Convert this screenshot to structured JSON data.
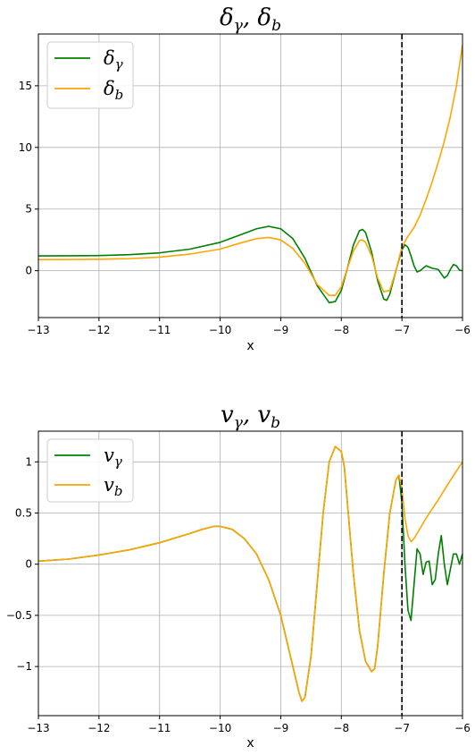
{
  "chart_data": [
    {
      "type": "line",
      "title": "δγ, δb",
      "xlabel": "x",
      "ylabel": "",
      "xlim": [
        -13,
        -6
      ],
      "ylim": [
        -3.8,
        19.2
      ],
      "xticks": [
        -13,
        -12,
        -11,
        -10,
        -9,
        -8,
        -7,
        -6
      ],
      "yticks": [
        0,
        5,
        10,
        15
      ],
      "grid": true,
      "legend": "top-left",
      "vline": {
        "x": -7,
        "style": "dashed",
        "color": "#000000"
      },
      "series": [
        {
          "name": "δγ",
          "color": "#008000",
          "x": [
            -13,
            -12.5,
            -12,
            -11.5,
            -11,
            -10.5,
            -10,
            -9.7,
            -9.4,
            -9.2,
            -9.0,
            -8.8,
            -8.6,
            -8.4,
            -8.2,
            -8.1,
            -8.0,
            -7.9,
            -7.8,
            -7.7,
            -7.65,
            -7.6,
            -7.5,
            -7.4,
            -7.3,
            -7.25,
            -7.2,
            -7.1,
            -7.0,
            -6.95,
            -6.9,
            -6.85,
            -6.8,
            -6.75,
            -6.7,
            -6.6,
            -6.5,
            -6.4,
            -6.3,
            -6.25,
            -6.2,
            -6.15,
            -6.1,
            -6.05,
            -6.0
          ],
          "y": [
            1.2,
            1.21,
            1.23,
            1.3,
            1.45,
            1.75,
            2.3,
            2.85,
            3.4,
            3.6,
            3.4,
            2.6,
            1.0,
            -1.2,
            -2.6,
            -2.5,
            -1.6,
            0.2,
            2.1,
            3.25,
            3.35,
            3.1,
            1.5,
            -0.8,
            -2.3,
            -2.4,
            -1.9,
            0.0,
            1.7,
            2.1,
            1.9,
            1.2,
            0.4,
            -0.1,
            0.0,
            0.4,
            0.2,
            0.1,
            -0.6,
            -0.4,
            0.1,
            0.5,
            0.4,
            0.05,
            0.0
          ]
        },
        {
          "name": "δb",
          "color": "#ffa500",
          "x": [
            -13,
            -12.5,
            -12,
            -11.5,
            -11,
            -10.5,
            -10,
            -9.7,
            -9.4,
            -9.2,
            -9.0,
            -8.8,
            -8.6,
            -8.4,
            -8.2,
            -8.1,
            -8.0,
            -7.9,
            -7.8,
            -7.7,
            -7.65,
            -7.6,
            -7.5,
            -7.4,
            -7.3,
            -7.2,
            -7.1,
            -7.0,
            -6.9,
            -6.8,
            -6.7,
            -6.6,
            -6.5,
            -6.4,
            -6.3,
            -6.2,
            -6.1,
            -6.0
          ],
          "y": [
            0.9,
            0.91,
            0.93,
            0.98,
            1.1,
            1.35,
            1.75,
            2.2,
            2.6,
            2.7,
            2.5,
            1.8,
            0.6,
            -1.1,
            -2.0,
            -2.0,
            -1.3,
            0.2,
            1.6,
            2.45,
            2.5,
            2.3,
            1.2,
            -0.6,
            -1.7,
            -1.6,
            0.0,
            1.9,
            2.8,
            3.5,
            4.5,
            5.8,
            7.2,
            8.8,
            10.5,
            12.5,
            15.0,
            18.3
          ]
        }
      ]
    },
    {
      "type": "line",
      "title": "vγ, vb",
      "xlabel": "x",
      "ylabel": "",
      "xlim": [
        -13,
        -6
      ],
      "ylim": [
        -1.48,
        1.3
      ],
      "xticks": [
        -13,
        -12,
        -11,
        -10,
        -9,
        -8,
        -7,
        -6
      ],
      "yticks": [
        -1.0,
        -0.5,
        0.0,
        0.5,
        1.0
      ],
      "grid": true,
      "legend": "top-left",
      "vline": {
        "x": -7,
        "style": "dashed",
        "color": "#000000"
      },
      "series": [
        {
          "name": "vγ",
          "color": "#008000",
          "x": [
            -13,
            -12.5,
            -12,
            -11.5,
            -11,
            -10.5,
            -10.3,
            -10.1,
            -10.0,
            -9.8,
            -9.6,
            -9.4,
            -9.2,
            -9.0,
            -8.8,
            -8.7,
            -8.65,
            -8.6,
            -8.5,
            -8.4,
            -8.3,
            -8.2,
            -8.1,
            -8.0,
            -7.95,
            -7.9,
            -7.8,
            -7.7,
            -7.6,
            -7.5,
            -7.45,
            -7.4,
            -7.3,
            -7.2,
            -7.1,
            -7.05,
            -7.0,
            -6.95,
            -6.9,
            -6.85,
            -6.8,
            -6.75,
            -6.7,
            -6.65,
            -6.6,
            -6.55,
            -6.5,
            -6.45,
            -6.4,
            -6.35,
            -6.3,
            -6.25,
            -6.2,
            -6.15,
            -6.1,
            -6.05,
            -6.0
          ],
          "y": [
            0.03,
            0.05,
            0.09,
            0.14,
            0.21,
            0.3,
            0.34,
            0.37,
            0.37,
            0.34,
            0.25,
            0.1,
            -0.15,
            -0.5,
            -1.0,
            -1.25,
            -1.34,
            -1.3,
            -0.9,
            -0.2,
            0.5,
            1.0,
            1.15,
            1.1,
            0.95,
            0.6,
            -0.1,
            -0.65,
            -0.95,
            -1.05,
            -1.02,
            -0.8,
            -0.1,
            0.5,
            0.82,
            0.87,
            0.6,
            0.0,
            -0.45,
            -0.55,
            -0.2,
            0.15,
            0.1,
            -0.1,
            0.02,
            0.03,
            -0.2,
            -0.15,
            0.1,
            0.28,
            0.0,
            -0.2,
            -0.05,
            0.1,
            0.1,
            0.0,
            0.1
          ]
        },
        {
          "name": "vb",
          "color": "#ffa500",
          "x": [
            -13,
            -12.5,
            -12,
            -11.5,
            -11,
            -10.5,
            -10.3,
            -10.1,
            -10.0,
            -9.8,
            -9.6,
            -9.4,
            -9.2,
            -9.0,
            -8.8,
            -8.7,
            -8.65,
            -8.6,
            -8.5,
            -8.4,
            -8.3,
            -8.2,
            -8.1,
            -8.0,
            -7.95,
            -7.9,
            -7.8,
            -7.7,
            -7.6,
            -7.5,
            -7.45,
            -7.4,
            -7.3,
            -7.2,
            -7.1,
            -7.05,
            -7.0,
            -6.95,
            -6.9,
            -6.85,
            -6.8,
            -6.6,
            -6.4,
            -6.2,
            -6.0
          ],
          "y": [
            0.03,
            0.05,
            0.09,
            0.14,
            0.21,
            0.3,
            0.34,
            0.37,
            0.37,
            0.34,
            0.25,
            0.1,
            -0.15,
            -0.5,
            -1.0,
            -1.25,
            -1.34,
            -1.3,
            -0.9,
            -0.2,
            0.5,
            1.0,
            1.15,
            1.1,
            0.95,
            0.6,
            -0.1,
            -0.65,
            -0.95,
            -1.05,
            -1.02,
            -0.8,
            -0.1,
            0.5,
            0.82,
            0.87,
            0.75,
            0.45,
            0.28,
            0.22,
            0.25,
            0.45,
            0.63,
            0.82,
            1.0
          ]
        }
      ]
    }
  ]
}
